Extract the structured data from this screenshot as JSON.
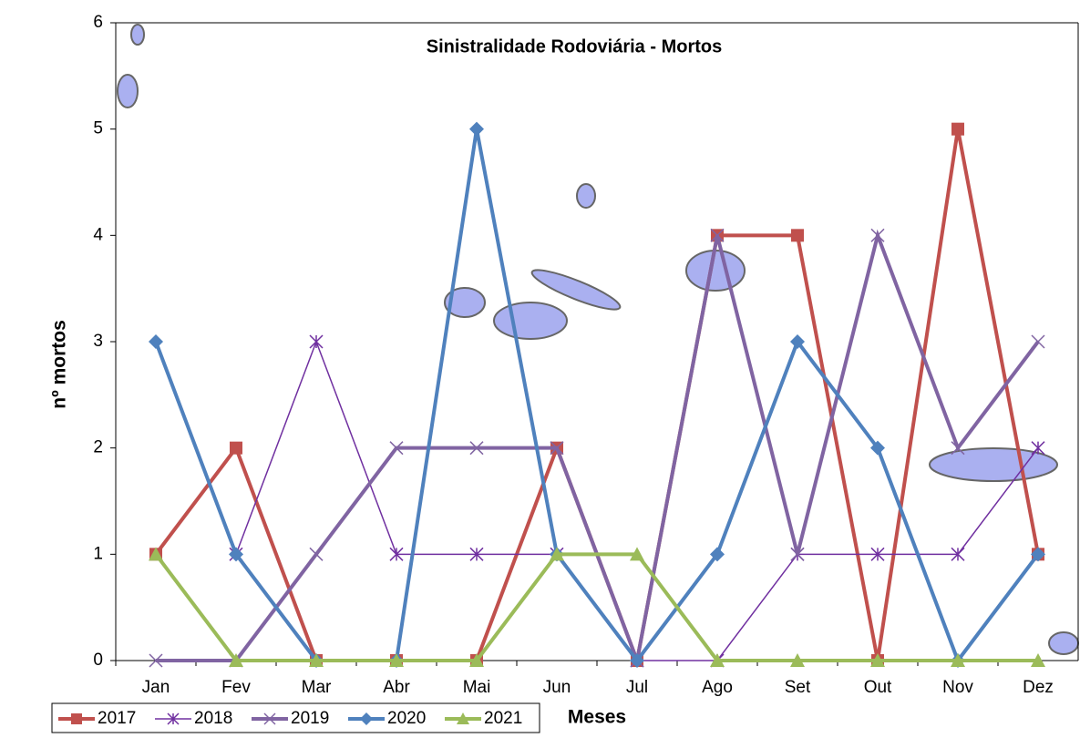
{
  "chart_data": {
    "type": "line",
    "title": "Sinistralidade  Rodoviária - Mortos",
    "x_label": "Meses",
    "y_label": "nº mortos",
    "categories": [
      "Jan",
      "Fev",
      "Mar",
      "Abr",
      "Mai",
      "Jun",
      "Jul",
      "Ago",
      "Set",
      "Out",
      "Nov",
      "Dez"
    ],
    "ylim": [
      0,
      6
    ],
    "yticks": [
      0,
      1,
      2,
      3,
      4,
      5,
      6
    ],
    "legend": "bottom-left",
    "series": [
      {
        "name": "2017",
        "color": "#c0504d",
        "marker": "square",
        "values": [
          1,
          2,
          0,
          0,
          0,
          2,
          0,
          4,
          4,
          0,
          5,
          1
        ]
      },
      {
        "name": "2018",
        "color": "#7030a0",
        "marker": "star",
        "values": [
          null,
          1,
          3,
          1,
          1,
          1,
          0,
          0,
          1,
          1,
          1,
          2
        ]
      },
      {
        "name": "2019",
        "color": "#8064a2",
        "marker": "x",
        "values": [
          0,
          0,
          1,
          2,
          2,
          2,
          0,
          4,
          1,
          4,
          2,
          3
        ]
      },
      {
        "name": "2020",
        "color": "#4f81bd",
        "marker": "diamond",
        "values": [
          3,
          1,
          0,
          0,
          5,
          1,
          0,
          1,
          3,
          2,
          0,
          1
        ]
      },
      {
        "name": "2021",
        "color": "#9bbb59",
        "marker": "triangle",
        "values": [
          1,
          0,
          0,
          0,
          0,
          1,
          1,
          0,
          0,
          0,
          0,
          0
        ]
      }
    ]
  }
}
